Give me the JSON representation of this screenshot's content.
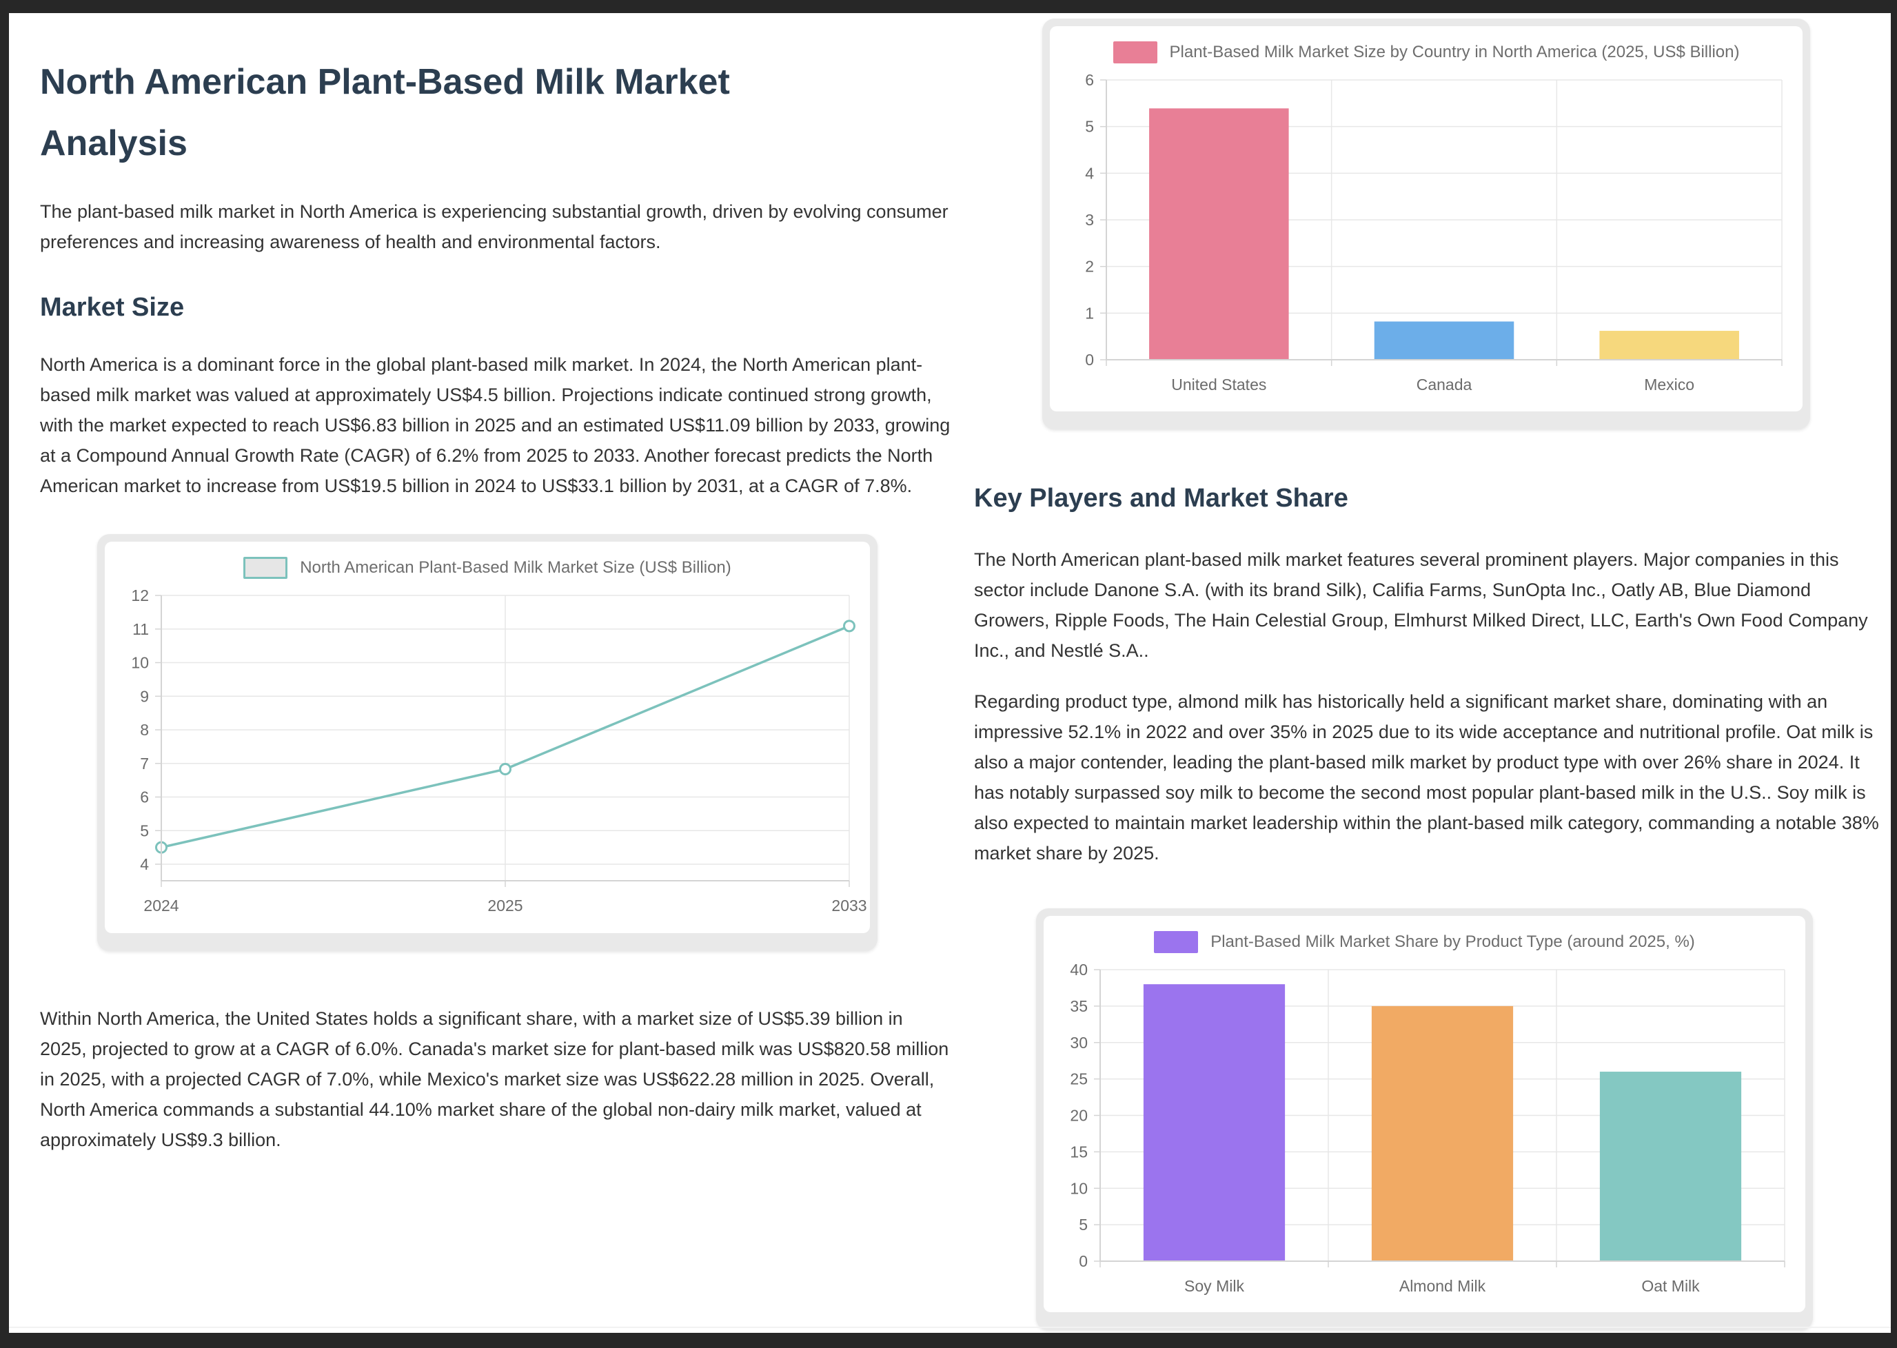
{
  "page": {
    "title": "North American Plant-Based Milk Market Analysis",
    "intro": "The plant-based milk market in North America is experiencing substantial growth, driven by evolving consumer preferences and increasing awareness of health and environmental factors.",
    "sections": {
      "market_size": {
        "heading": "Market Size",
        "para1": "North America is a dominant force in the global plant-based milk market. In 2024, the North American plant-based milk market was valued at approximately US$4.5 billion. Projections indicate continued strong growth, with the market expected to reach US$6.83 billion in 2025 and an estimated US$11.09 billion by 2033, growing at a Compound Annual Growth Rate (CAGR) of 6.2% from 2025 to 2033. Another forecast predicts the North American market to increase from US$19.5 billion in 2024 to US$33.1 billion by 2031, at a CAGR of 7.8%.",
        "para2": "Within North America, the United States holds a significant share, with a market size of US$5.39 billion in 2025, projected to grow at a CAGR of 6.0%. Canada's market size for plant-based milk was US$820.58 million in 2025, with a projected CAGR of 7.0%, while Mexico's market size was US$622.28 million in 2025. Overall, North America commands a substantial 44.10% market share of the global non-dairy milk market, valued at approximately US$9.3 billion."
      },
      "key_players": {
        "heading": "Key Players and Market Share",
        "para1": "The North American plant-based milk market features several prominent players. Major companies in this sector include Danone S.A. (with its brand Silk), Califia Farms, SunOpta Inc., Oatly AB, Blue Diamond Growers, Ripple Foods, The Hain Celestial Group, Elmhurst Milked Direct, LLC, Earth's Own Food Company Inc., and Nestlé S.A..",
        "para2": "Regarding product type, almond milk has historically held a significant market share, dominating with an impressive 52.1% in 2022 and over 35% in 2025 due to its wide acceptance and nutritional profile. Oat milk is also a major contender, leading the plant-based milk market by product type with over 26% share in 2024. It has notably surpassed soy milk to become the second most popular plant-based milk in the U.S.. Soy milk is also expected to maintain market leadership within the plant-based milk category, commanding a notable 38% market share by 2025."
      }
    }
  },
  "chart_data": [
    {
      "type": "bar",
      "title": "Plant-Based Milk Market Size by Country in North America (2025, US$ Billion)",
      "categories": [
        "United States",
        "Canada",
        "Mexico"
      ],
      "values": [
        5.39,
        0.82,
        0.62
      ],
      "bar_colors": [
        "#e87f96",
        "#6caee9",
        "#f6d87d"
      ],
      "legend_color": "#e87f96",
      "ylim": [
        0,
        6
      ],
      "ytick_step": 1,
      "xlabel": "",
      "ylabel": "",
      "grid": true,
      "legend_position": "top"
    },
    {
      "type": "line",
      "title": "North American Plant-Based Milk Market Size (US$ Billion)",
      "x": [
        "2024",
        "2025",
        "2033"
      ],
      "values": [
        4.5,
        6.83,
        11.09
      ],
      "line_color": "#7cc2bc",
      "legend_fill": "#e6e6e6",
      "ylim": [
        4,
        12
      ],
      "ytick_step": 1,
      "xlabel": "",
      "ylabel": "",
      "grid": true,
      "legend_position": "top"
    },
    {
      "type": "bar",
      "title": "Plant-Based Milk Market Share by Product Type (around 2025, %)",
      "categories": [
        "Soy Milk",
        "Almond Milk",
        "Oat Milk"
      ],
      "values": [
        38,
        35,
        26
      ],
      "bar_colors": [
        "#9b74ee",
        "#f1aa64",
        "#84c8c2"
      ],
      "legend_color": "#9b74ee",
      "ylim": [
        0,
        40
      ],
      "ytick_step": 5,
      "xlabel": "",
      "ylabel": "",
      "grid": true,
      "legend_position": "top"
    }
  ],
  "colors": {
    "heading": "#2c3e50",
    "body_text": "#333333",
    "axis_text": "#6b6b6b",
    "grid_line": "#e7e7e7",
    "axis_border": "#d4d4d4",
    "page_background": "#ffffff",
    "outer_background": "#272727",
    "card_frame": "#e9e9e9"
  }
}
